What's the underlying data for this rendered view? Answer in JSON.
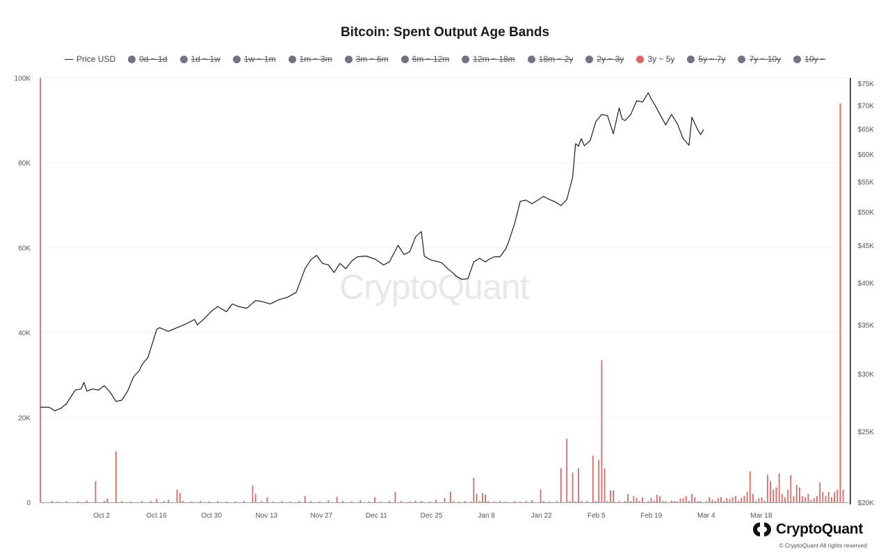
{
  "chart_data": {
    "type": "bar",
    "title": "Bitcoin: Spent Output Age Bands",
    "legend": [
      {
        "label": "Price USD",
        "kind": "line",
        "active": true,
        "color": "#222222"
      },
      {
        "label": "0d ~ 1d",
        "kind": "dot",
        "active": false,
        "color": "#707482"
      },
      {
        "label": "1d ~ 1w",
        "kind": "dot",
        "active": false,
        "color": "#707482"
      },
      {
        "label": "1w ~ 1m",
        "kind": "dot",
        "active": false,
        "color": "#707482"
      },
      {
        "label": "1m ~ 3m",
        "kind": "dot",
        "active": false,
        "color": "#707482"
      },
      {
        "label": "3m ~ 6m",
        "kind": "dot",
        "active": false,
        "color": "#707482"
      },
      {
        "label": "6m ~ 12m",
        "kind": "dot",
        "active": false,
        "color": "#707482"
      },
      {
        "label": "12m ~ 18m",
        "kind": "dot",
        "active": false,
        "color": "#707482"
      },
      {
        "label": "18m ~ 2y",
        "kind": "dot",
        "active": false,
        "color": "#707482"
      },
      {
        "label": "2y ~ 3y",
        "kind": "dot",
        "active": false,
        "color": "#707482"
      },
      {
        "label": "3y ~ 5y",
        "kind": "dot",
        "active": true,
        "color": "#e06666"
      },
      {
        "label": "5y ~ 7y",
        "kind": "dot",
        "active": false,
        "color": "#707482"
      },
      {
        "label": "7y ~ 10y",
        "kind": "dot",
        "active": false,
        "color": "#707482"
      },
      {
        "label": "10y ~",
        "kind": "dot",
        "active": false,
        "color": "#707482"
      }
    ],
    "x_ticks": [
      "Oct 2",
      "Oct 16",
      "Oct 30",
      "Nov 13",
      "Nov 27",
      "Dec 11",
      "Dec 25",
      "Jan 8",
      "Jan 22",
      "Feb 5",
      "Feb 19",
      "Mar 4",
      "Mar 18"
    ],
    "y_left_ticks": [
      "0",
      "20K",
      "40K",
      "60K",
      "80K",
      "100K"
    ],
    "y_left_range": [
      0,
      100000
    ],
    "y_right_ticks": [
      "$20K",
      "$25K",
      "$30K",
      "$35K",
      "$40K",
      "$45K",
      "$50K",
      "$55K",
      "$60K",
      "$65K",
      "$70K",
      "$75K"
    ],
    "y_right_range": [
      20000,
      77000
    ],
    "y_right_scale": "log",
    "colors": {
      "bars": "#e06666",
      "price": "#1a1a1a",
      "grid": "#f0f0f0"
    },
    "series": [
      {
        "name": "3y ~ 5y",
        "type": "bar",
        "points": [
          [
            0,
            100000
          ],
          [
            8,
            300
          ],
          [
            12,
            200
          ],
          [
            18,
            300
          ],
          [
            26,
            200
          ],
          [
            32,
            400
          ],
          [
            38,
            5000
          ],
          [
            44,
            300
          ],
          [
            46,
            900
          ],
          [
            52,
            12000
          ],
          [
            56,
            300
          ],
          [
            62,
            200
          ],
          [
            70,
            300
          ],
          [
            76,
            300
          ],
          [
            80,
            800
          ],
          [
            85,
            300
          ],
          [
            88,
            600
          ],
          [
            94,
            3000
          ],
          [
            96,
            2200
          ],
          [
            98,
            300
          ],
          [
            104,
            200
          ],
          [
            110,
            300
          ],
          [
            116,
            200
          ],
          [
            122,
            300
          ],
          [
            128,
            200
          ],
          [
            134,
            200
          ],
          [
            140,
            300
          ],
          [
            146,
            4000
          ],
          [
            148,
            2000
          ],
          [
            152,
            300
          ],
          [
            156,
            1200
          ],
          [
            160,
            200
          ],
          [
            166,
            300
          ],
          [
            172,
            200
          ],
          [
            178,
            300
          ],
          [
            182,
            1500
          ],
          [
            186,
            300
          ],
          [
            192,
            200
          ],
          [
            198,
            500
          ],
          [
            204,
            1300
          ],
          [
            208,
            300
          ],
          [
            214,
            200
          ],
          [
            220,
            500
          ],
          [
            226,
            200
          ],
          [
            230,
            1200
          ],
          [
            234,
            200
          ],
          [
            240,
            300
          ],
          [
            244,
            2500
          ],
          [
            248,
            300
          ],
          [
            254,
            200
          ],
          [
            258,
            400
          ],
          [
            262,
            300
          ],
          [
            268,
            200
          ],
          [
            272,
            600
          ],
          [
            278,
            1000
          ],
          [
            282,
            2500
          ],
          [
            284,
            300
          ],
          [
            288,
            200
          ],
          [
            292,
            300
          ],
          [
            296,
            200
          ],
          [
            298,
            5800
          ],
          [
            300,
            2000
          ],
          [
            302,
            300
          ],
          [
            304,
            2200
          ],
          [
            306,
            1800
          ],
          [
            308,
            300
          ],
          [
            312,
            200
          ],
          [
            316,
            300
          ],
          [
            320,
            200
          ],
          [
            326,
            300
          ],
          [
            330,
            200
          ],
          [
            334,
            300
          ],
          [
            338,
            500
          ],
          [
            344,
            3000
          ],
          [
            346,
            300
          ],
          [
            350,
            200
          ],
          [
            355,
            300
          ],
          [
            358,
            8000
          ],
          [
            362,
            15000
          ],
          [
            364,
            300
          ],
          [
            366,
            7000
          ],
          [
            368,
            200
          ],
          [
            370,
            8000
          ],
          [
            372,
            300
          ],
          [
            376,
            300
          ],
          [
            380,
            11000
          ],
          [
            382,
            300
          ],
          [
            384,
            10000
          ],
          [
            386,
            33500
          ],
          [
            388,
            8000
          ],
          [
            390,
            300
          ],
          [
            392,
            2800
          ],
          [
            394,
            2800
          ],
          [
            398,
            300
          ],
          [
            402,
            300
          ],
          [
            404,
            2000
          ],
          [
            406,
            300
          ],
          [
            408,
            1500
          ],
          [
            410,
            1000
          ],
          [
            412,
            300
          ],
          [
            414,
            1200
          ],
          [
            418,
            300
          ],
          [
            420,
            1000
          ],
          [
            422,
            400
          ],
          [
            424,
            1800
          ],
          [
            426,
            1500
          ],
          [
            428,
            300
          ],
          [
            430,
            300
          ],
          [
            434,
            400
          ],
          [
            436,
            300
          ],
          [
            438,
            200
          ],
          [
            440,
            900
          ],
          [
            442,
            1000
          ],
          [
            444,
            1500
          ],
          [
            446,
            300
          ],
          [
            448,
            2000
          ],
          [
            450,
            1200
          ],
          [
            452,
            300
          ],
          [
            454,
            300
          ],
          [
            458,
            300
          ],
          [
            460,
            1200
          ],
          [
            462,
            600
          ],
          [
            464,
            300
          ],
          [
            466,
            1000
          ],
          [
            468,
            1200
          ],
          [
            470,
            300
          ],
          [
            472,
            1000
          ],
          [
            474,
            800
          ],
          [
            476,
            1200
          ],
          [
            478,
            1500
          ],
          [
            480,
            300
          ],
          [
            482,
            1000
          ],
          [
            484,
            1500
          ],
          [
            486,
            2500
          ],
          [
            488,
            7300
          ],
          [
            490,
            2000
          ],
          [
            492,
            300
          ],
          [
            494,
            1000
          ],
          [
            496,
            1200
          ],
          [
            498,
            400
          ],
          [
            500,
            6500
          ],
          [
            502,
            5000
          ],
          [
            504,
            3000
          ],
          [
            506,
            3500
          ],
          [
            508,
            6800
          ],
          [
            510,
            2000
          ],
          [
            512,
            1200
          ],
          [
            514,
            3000
          ],
          [
            516,
            6400
          ],
          [
            518,
            1500
          ],
          [
            520,
            4100
          ],
          [
            522,
            3500
          ],
          [
            524,
            1500
          ],
          [
            526,
            1200
          ],
          [
            528,
            2000
          ],
          [
            530,
            600
          ],
          [
            532,
            1000
          ],
          [
            534,
            1500
          ],
          [
            536,
            4700
          ],
          [
            538,
            2400
          ],
          [
            540,
            1500
          ],
          [
            542,
            2500
          ],
          [
            544,
            1200
          ],
          [
            546,
            2400
          ],
          [
            548,
            3000
          ],
          [
            550,
            94000
          ],
          [
            552,
            3000
          ]
        ]
      },
      {
        "name": "Price USD",
        "type": "line",
        "points": [
          [
            0,
            27000
          ],
          [
            6,
            27000
          ],
          [
            10,
            26700
          ],
          [
            14,
            26900
          ],
          [
            18,
            27300
          ],
          [
            24,
            28500
          ],
          [
            28,
            28600
          ],
          [
            30,
            29200
          ],
          [
            32,
            28400
          ],
          [
            36,
            28600
          ],
          [
            40,
            28500
          ],
          [
            44,
            28900
          ],
          [
            48,
            28300
          ],
          [
            52,
            27500
          ],
          [
            56,
            27600
          ],
          [
            60,
            28400
          ],
          [
            64,
            29700
          ],
          [
            68,
            30300
          ],
          [
            70,
            30900
          ],
          [
            74,
            31600
          ],
          [
            78,
            33500
          ],
          [
            80,
            34500
          ],
          [
            82,
            34700
          ],
          [
            88,
            34300
          ],
          [
            94,
            34700
          ],
          [
            100,
            35100
          ],
          [
            106,
            35600
          ],
          [
            108,
            35000
          ],
          [
            112,
            35600
          ],
          [
            118,
            36600
          ],
          [
            122,
            37100
          ],
          [
            128,
            36500
          ],
          [
            132,
            37400
          ],
          [
            136,
            37100
          ],
          [
            142,
            36900
          ],
          [
            148,
            37800
          ],
          [
            152,
            37700
          ],
          [
            158,
            37400
          ],
          [
            164,
            37900
          ],
          [
            170,
            38200
          ],
          [
            176,
            38800
          ],
          [
            182,
            41800
          ],
          [
            186,
            43000
          ],
          [
            190,
            43600
          ],
          [
            194,
            42500
          ],
          [
            198,
            42300
          ],
          [
            202,
            41300
          ],
          [
            206,
            42500
          ],
          [
            210,
            41800
          ],
          [
            214,
            42800
          ],
          [
            218,
            43400
          ],
          [
            224,
            43500
          ],
          [
            230,
            43100
          ],
          [
            236,
            42300
          ],
          [
            240,
            42700
          ],
          [
            246,
            45000
          ],
          [
            250,
            43700
          ],
          [
            254,
            44100
          ],
          [
            258,
            46200
          ],
          [
            262,
            47000
          ],
          [
            264,
            43500
          ],
          [
            268,
            43000
          ],
          [
            272,
            42800
          ],
          [
            276,
            42600
          ],
          [
            280,
            41800
          ],
          [
            284,
            41200
          ],
          [
            286,
            40800
          ],
          [
            290,
            40400
          ],
          [
            294,
            40500
          ],
          [
            298,
            42700
          ],
          [
            302,
            43200
          ],
          [
            306,
            42700
          ],
          [
            308,
            43000
          ],
          [
            312,
            43400
          ],
          [
            316,
            43400
          ],
          [
            320,
            44500
          ],
          [
            322,
            45500
          ],
          [
            326,
            48100
          ],
          [
            330,
            51700
          ],
          [
            334,
            51900
          ],
          [
            338,
            51300
          ],
          [
            342,
            51900
          ],
          [
            346,
            52500
          ],
          [
            350,
            52000
          ],
          [
            354,
            51600
          ],
          [
            358,
            51000
          ],
          [
            362,
            52000
          ],
          [
            366,
            55800
          ],
          [
            368,
            62000
          ],
          [
            370,
            61500
          ],
          [
            372,
            63000
          ],
          [
            374,
            61600
          ],
          [
            378,
            62600
          ],
          [
            382,
            66500
          ],
          [
            386,
            68000
          ],
          [
            390,
            67700
          ],
          [
            394,
            64000
          ],
          [
            398,
            69400
          ],
          [
            400,
            67000
          ],
          [
            402,
            66700
          ],
          [
            406,
            68000
          ],
          [
            410,
            71000
          ],
          [
            414,
            70700
          ],
          [
            418,
            72800
          ],
          [
            420,
            71400
          ],
          [
            422,
            70400
          ],
          [
            426,
            68000
          ],
          [
            430,
            65800
          ],
          [
            434,
            68000
          ],
          [
            438,
            66000
          ],
          [
            442,
            63000
          ],
          [
            446,
            61700
          ],
          [
            448,
            67400
          ],
          [
            452,
            64800
          ],
          [
            454,
            63800
          ],
          [
            456,
            64800
          ]
        ]
      }
    ]
  },
  "brand": {
    "name": "CryptoQuant",
    "copyright": "© CryptoQuant All rights reserved",
    "watermark": "CryptoQuant"
  }
}
